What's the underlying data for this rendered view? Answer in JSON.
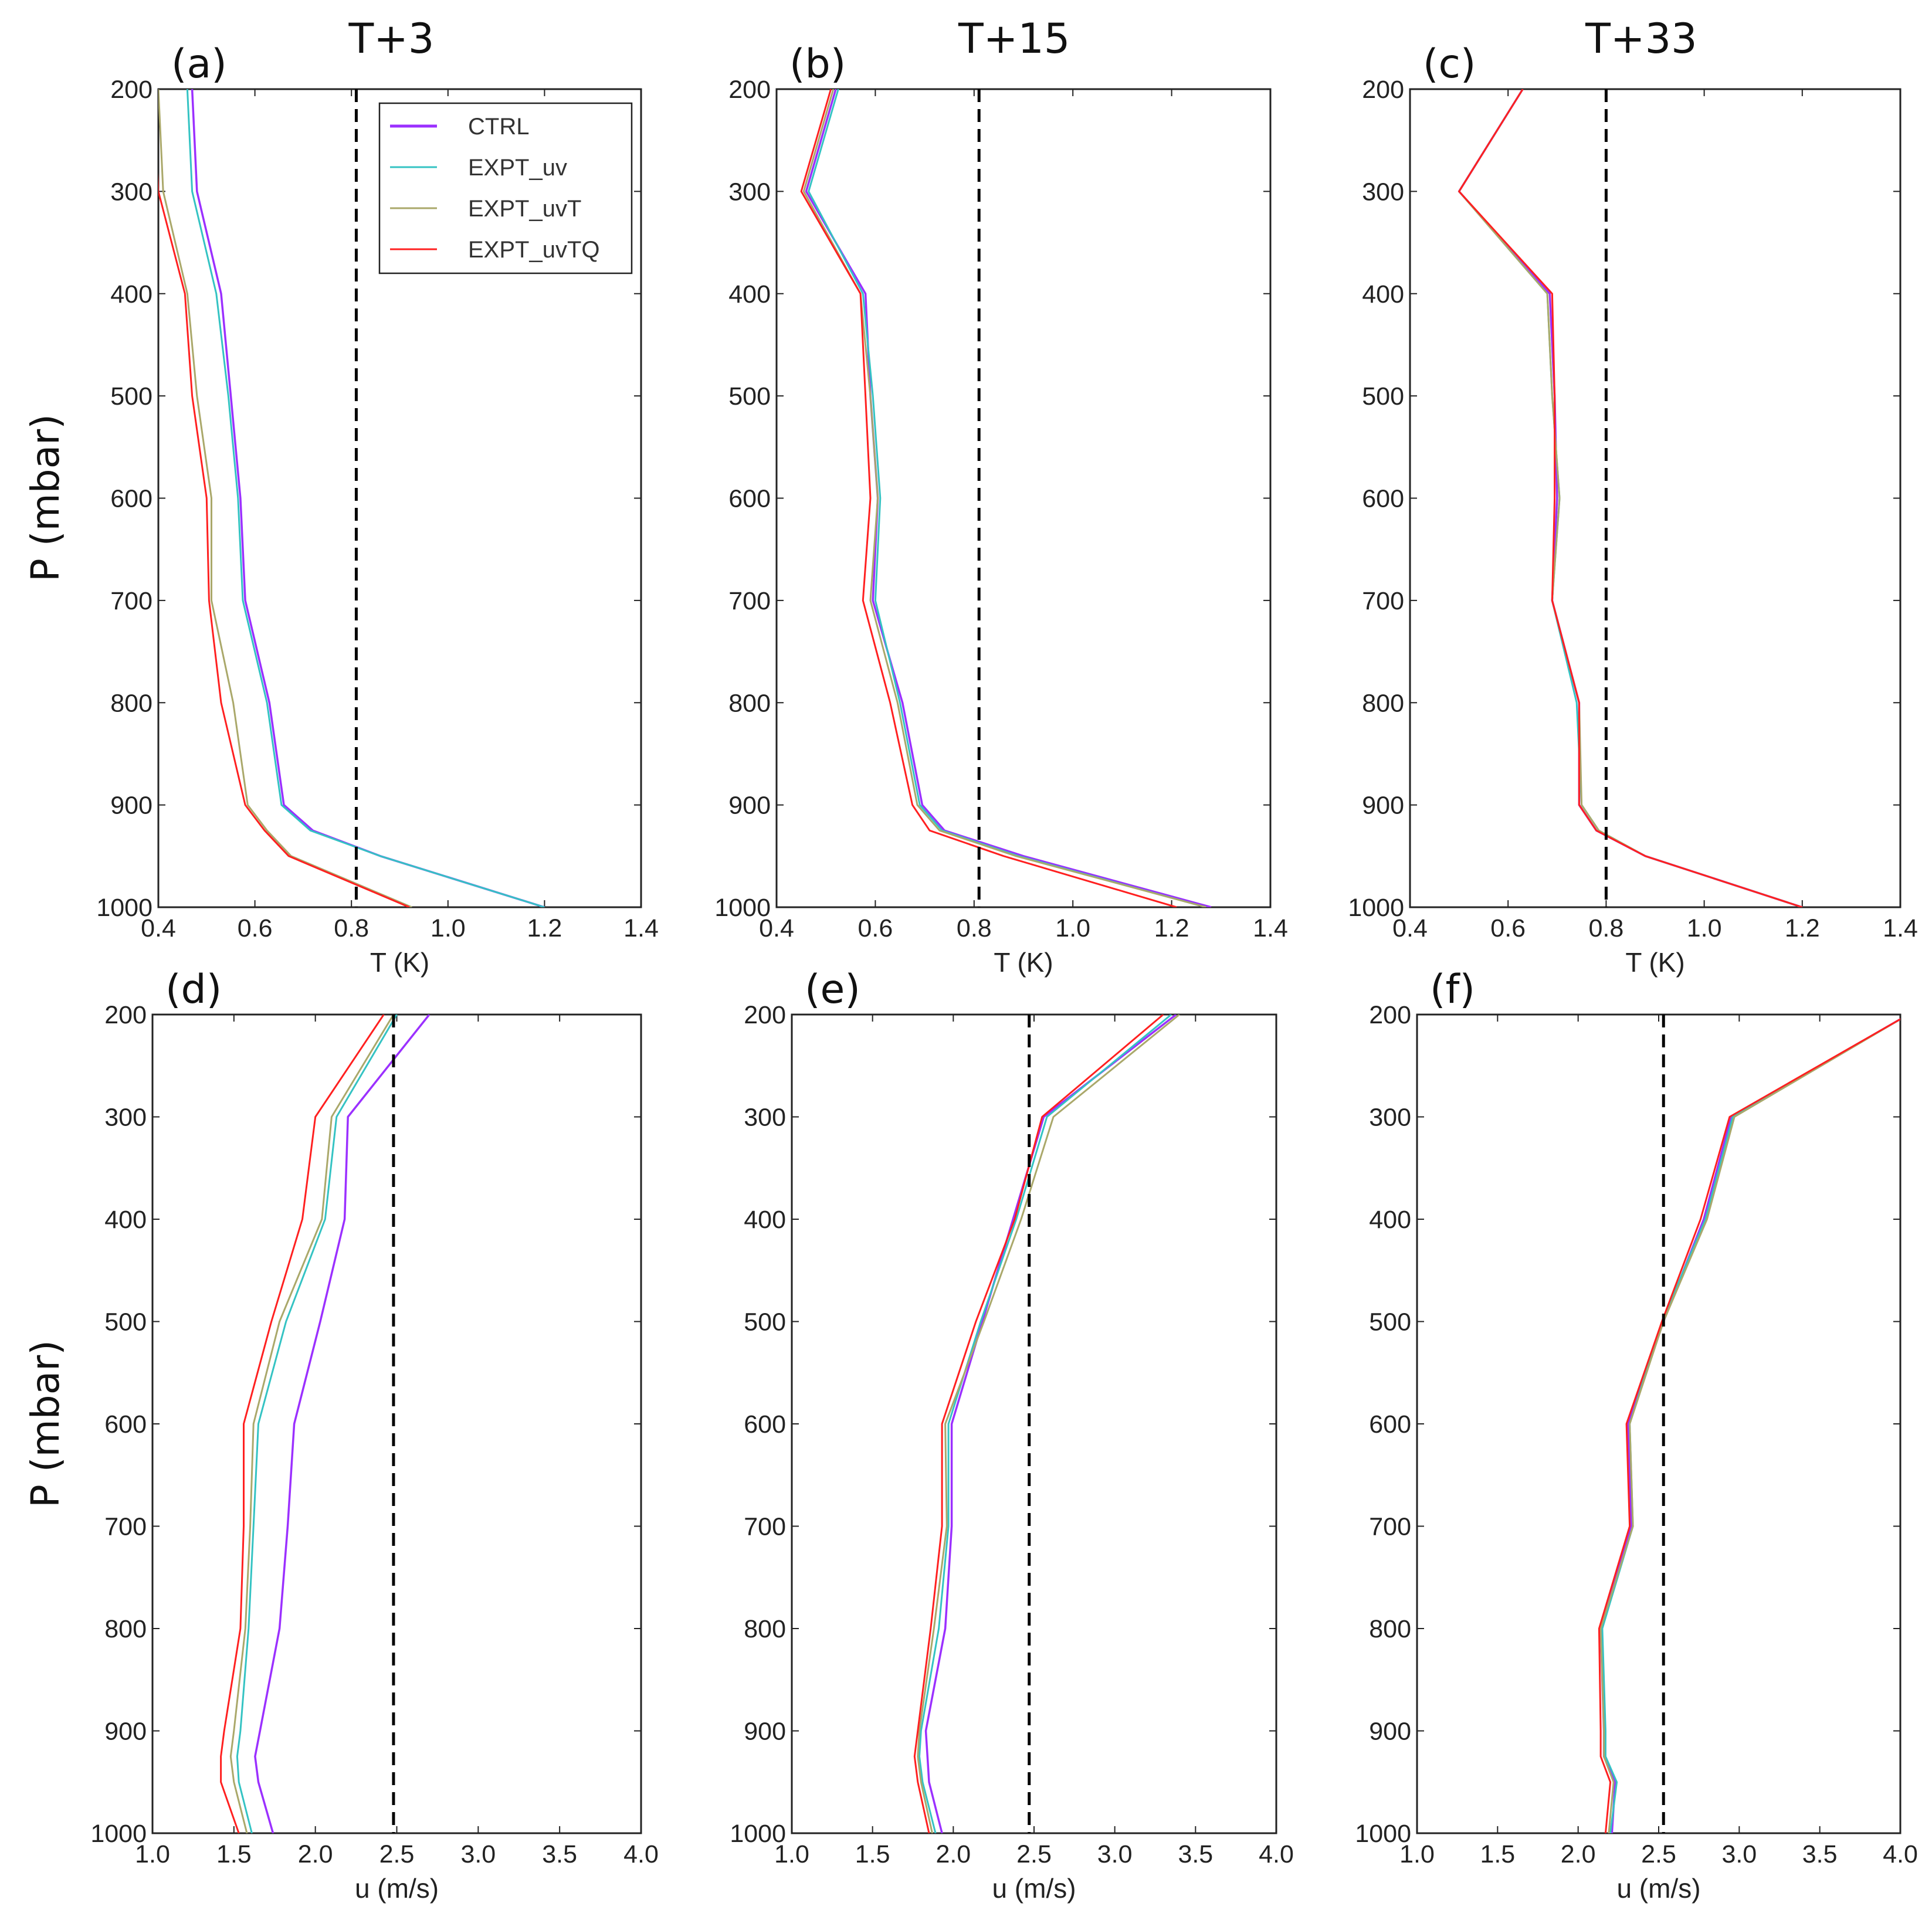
{
  "chart_data": [
    {
      "type": "line",
      "panel": "(a)",
      "title": "T+3",
      "xlabel": "T (K)",
      "ylabel": "",
      "xlim": [
        0.4,
        1.4
      ],
      "ylim": [
        200,
        1000
      ],
      "xticks": [
        "0.4",
        "0.6",
        "0.8",
        "1.0",
        "1.2",
        "1.4"
      ],
      "yticks": [
        "200",
        "300",
        "400",
        "500",
        "600",
        "700",
        "800",
        "900",
        "1000"
      ],
      "reference_line": 0.81,
      "y": [
        200,
        300,
        400,
        500,
        600,
        700,
        800,
        900,
        925,
        950,
        1000
      ],
      "series": [
        {
          "name": "CTRL",
          "values": [
            0.47,
            0.48,
            0.53,
            0.55,
            0.57,
            0.58,
            0.63,
            0.66,
            0.72,
            0.86,
            1.2
          ]
        },
        {
          "name": "EXPT_uv",
          "values": [
            0.46,
            0.47,
            0.52,
            0.545,
            0.565,
            0.575,
            0.625,
            0.655,
            0.715,
            0.86,
            1.2
          ]
        },
        {
          "name": "EXPT_uvT",
          "values": [
            0.4,
            0.41,
            0.46,
            0.48,
            0.51,
            0.51,
            0.555,
            0.585,
            0.625,
            0.675,
            0.925
          ]
        },
        {
          "name": "EXPT_uvTQ",
          "values": [
            0.39,
            0.4,
            0.455,
            0.47,
            0.5,
            0.505,
            0.53,
            0.58,
            0.62,
            0.67,
            0.92
          ]
        }
      ]
    },
    {
      "type": "line",
      "panel": "(b)",
      "title": "T+15",
      "xlabel": "T (K)",
      "ylabel": "",
      "xlim": [
        0.4,
        1.4
      ],
      "ylim": [
        200,
        1000
      ],
      "xticks": [
        "0.4",
        "0.6",
        "0.8",
        "1.0",
        "1.2",
        "1.4"
      ],
      "yticks": [
        "200",
        "300",
        "400",
        "500",
        "600",
        "700",
        "800",
        "900",
        "1000"
      ],
      "reference_line": 0.81,
      "y": [
        200,
        300,
        400,
        500,
        600,
        700,
        800,
        900,
        925,
        950,
        1000
      ],
      "series": [
        {
          "name": "CTRL",
          "values": [
            0.52,
            0.46,
            0.58,
            0.59,
            0.605,
            0.595,
            0.655,
            0.695,
            0.74,
            0.9,
            1.28
          ]
        },
        {
          "name": "EXPT_uv",
          "values": [
            0.525,
            0.465,
            0.575,
            0.595,
            0.61,
            0.6,
            0.65,
            0.69,
            0.735,
            0.89,
            1.27
          ]
        },
        {
          "name": "EXPT_uvT",
          "values": [
            0.515,
            0.455,
            0.57,
            0.59,
            0.605,
            0.59,
            0.645,
            0.685,
            0.73,
            0.885,
            1.27
          ]
        },
        {
          "name": "EXPT_uvTQ",
          "values": [
            0.51,
            0.45,
            0.57,
            0.58,
            0.59,
            0.575,
            0.63,
            0.675,
            0.71,
            0.86,
            1.21
          ]
        }
      ]
    },
    {
      "type": "line",
      "panel": "(c)",
      "title": "T+33",
      "xlabel": "T (K)",
      "ylabel": "",
      "xlim": [
        0.4,
        1.4
      ],
      "ylim": [
        200,
        1000
      ],
      "xticks": [
        "0.4",
        "0.6",
        "0.8",
        "1.0",
        "1.2",
        "1.4"
      ],
      "yticks": [
        "200",
        "300",
        "400",
        "500",
        "600",
        "700",
        "800",
        "900",
        "1000"
      ],
      "reference_line": 0.8,
      "y": [
        200,
        300,
        400,
        500,
        600,
        700,
        800,
        900,
        925,
        950,
        1000
      ],
      "series": [
        {
          "name": "CTRL",
          "values": [
            0.63,
            0.5,
            0.685,
            0.695,
            0.7,
            0.69,
            0.745,
            0.745,
            0.78,
            0.88,
            1.2
          ]
        },
        {
          "name": "EXPT_uv",
          "values": [
            0.63,
            0.5,
            0.68,
            0.69,
            0.705,
            0.69,
            0.74,
            0.75,
            0.785,
            0.88,
            1.2
          ]
        },
        {
          "name": "EXPT_uvT",
          "values": [
            0.63,
            0.5,
            0.68,
            0.69,
            0.705,
            0.69,
            0.745,
            0.75,
            0.785,
            0.88,
            1.2
          ]
        },
        {
          "name": "EXPT_uvTQ",
          "values": [
            0.63,
            0.5,
            0.69,
            0.695,
            0.695,
            0.69,
            0.745,
            0.745,
            0.78,
            0.88,
            1.2
          ]
        }
      ]
    },
    {
      "type": "line",
      "panel": "(d)",
      "title": "",
      "xlabel": "u (m/s)",
      "ylabel": "",
      "xlim": [
        1.0,
        4.0
      ],
      "ylim": [
        200,
        1000
      ],
      "xticks": [
        "1.0",
        "1.5",
        "2.0",
        "2.5",
        "3.0",
        "3.5",
        "4.0"
      ],
      "yticks": [
        "200",
        "300",
        "400",
        "500",
        "600",
        "700",
        "800",
        "900",
        "1000"
      ],
      "reference_line": 2.48,
      "y": [
        200,
        300,
        400,
        500,
        600,
        700,
        800,
        900,
        925,
        950,
        1000
      ],
      "series": [
        {
          "name": "CTRL",
          "values": [
            2.7,
            2.2,
            2.18,
            2.03,
            1.87,
            1.83,
            1.78,
            1.66,
            1.63,
            1.65,
            1.74
          ]
        },
        {
          "name": "EXPT_uv",
          "values": [
            2.5,
            2.13,
            2.06,
            1.82,
            1.65,
            1.62,
            1.59,
            1.54,
            1.52,
            1.53,
            1.61
          ]
        },
        {
          "name": "EXPT_uvT",
          "values": [
            2.48,
            2.1,
            2.04,
            1.78,
            1.62,
            1.6,
            1.57,
            1.5,
            1.48,
            1.5,
            1.58
          ]
        },
        {
          "name": "EXPT_uvTQ",
          "values": [
            2.42,
            2.0,
            1.92,
            1.73,
            1.56,
            1.56,
            1.54,
            1.44,
            1.42,
            1.42,
            1.53
          ]
        }
      ]
    },
    {
      "type": "line",
      "panel": "(e)",
      "title": "",
      "xlabel": "u (m/s)",
      "ylabel": "",
      "xlim": [
        1.0,
        4.0
      ],
      "ylim": [
        200,
        1000
      ],
      "xticks": [
        "1.0",
        "1.5",
        "2.0",
        "2.5",
        "3.0",
        "3.5",
        "4.0"
      ],
      "yticks": [
        "200",
        "300",
        "400",
        "500",
        "600",
        "700",
        "800",
        "900",
        "1000"
      ],
      "reference_line": 2.47,
      "y": [
        200,
        300,
        400,
        500,
        600,
        700,
        800,
        900,
        925,
        950,
        1000
      ],
      "series": [
        {
          "name": "CTRL",
          "values": [
            3.38,
            2.56,
            2.37,
            2.18,
            1.99,
            1.99,
            1.95,
            1.83,
            1.84,
            1.85,
            1.93
          ]
        },
        {
          "name": "EXPT_uv",
          "values": [
            3.35,
            2.58,
            2.39,
            2.17,
            1.97,
            1.97,
            1.91,
            1.8,
            1.79,
            1.81,
            1.89
          ]
        },
        {
          "name": "EXPT_uvT",
          "values": [
            3.4,
            2.62,
            2.42,
            2.19,
            1.95,
            1.96,
            1.88,
            1.79,
            1.78,
            1.8,
            1.87
          ]
        },
        {
          "name": "EXPT_uvTQ",
          "values": [
            3.3,
            2.55,
            2.38,
            2.14,
            1.93,
            1.93,
            1.86,
            1.78,
            1.76,
            1.78,
            1.85
          ]
        }
      ]
    },
    {
      "type": "line",
      "panel": "(f)",
      "title": "",
      "xlabel": "u (m/s)",
      "ylabel": "",
      "xlim": [
        1.0,
        4.0
      ],
      "ylim": [
        200,
        1000
      ],
      "xticks": [
        "1.0",
        "1.5",
        "2.0",
        "2.5",
        "3.0",
        "3.5",
        "4.0"
      ],
      "yticks": [
        "200",
        "300",
        "400",
        "500",
        "600",
        "700",
        "800",
        "900",
        "1000"
      ],
      "reference_line": 2.53,
      "y": [
        200,
        300,
        400,
        500,
        600,
        700,
        800,
        900,
        925,
        950,
        1000
      ],
      "series": [
        {
          "name": "CTRL",
          "values": [
            4.05,
            2.95,
            2.78,
            2.53,
            2.31,
            2.33,
            2.14,
            2.16,
            2.16,
            2.23,
            2.21
          ]
        },
        {
          "name": "EXPT_uv",
          "values": [
            4.05,
            2.96,
            2.79,
            2.52,
            2.32,
            2.34,
            2.15,
            2.17,
            2.17,
            2.24,
            2.2
          ]
        },
        {
          "name": "EXPT_uvT",
          "values": [
            4.05,
            2.97,
            2.8,
            2.53,
            2.32,
            2.34,
            2.14,
            2.16,
            2.16,
            2.22,
            2.19
          ]
        },
        {
          "name": "EXPT_uvTQ",
          "values": [
            4.05,
            2.94,
            2.76,
            2.52,
            2.3,
            2.32,
            2.13,
            2.14,
            2.14,
            2.2,
            2.17
          ]
        }
      ]
    }
  ],
  "row_ylabels": [
    "P (mbar)",
    "P (mbar)"
  ],
  "legend": {
    "entries": [
      {
        "name": "CTRL",
        "color": "#9b30ff"
      },
      {
        "name": "EXPT_uv",
        "color": "#34c3c3"
      },
      {
        "name": "EXPT_uvT",
        "color": "#aaa86a"
      },
      {
        "name": "EXPT_uvTQ",
        "color": "#ff2020"
      }
    ],
    "placement": "top-right of panel (a)"
  },
  "colors": {
    "CTRL": "#9b30ff",
    "EXPT_uv": "#34c3c3",
    "EXPT_uvT": "#aaa86a",
    "EXPT_uvTQ": "#ff2020",
    "reference_line": "#000000",
    "axes": "#222222"
  }
}
